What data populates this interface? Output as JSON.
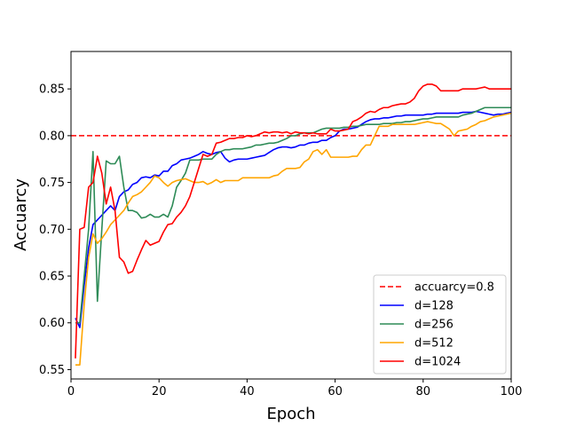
{
  "chart_data": {
    "type": "line",
    "title": "",
    "xlabel": "Epoch",
    "ylabel": "Accuarcy",
    "xlim": [
      0,
      100
    ],
    "ylim": [
      0.54,
      0.89
    ],
    "xticks": [
      0,
      20,
      40,
      60,
      80,
      100
    ],
    "yticks": [
      0.55,
      0.6,
      0.65,
      0.7,
      0.75,
      0.8,
      0.85
    ],
    "grid": false,
    "legend_position": "lower-right",
    "reference_line": {
      "name": "accuarcy=0.8",
      "y": 0.8,
      "color": "#ff0000",
      "style": "dashed"
    },
    "series": [
      {
        "name": "d=128",
        "color": "#0000ff",
        "x": [
          1,
          2,
          3,
          4,
          5,
          6,
          7,
          8,
          9,
          10,
          11,
          12,
          13,
          14,
          15,
          16,
          17,
          18,
          19,
          20,
          21,
          22,
          23,
          24,
          25,
          26,
          27,
          28,
          29,
          30,
          31,
          32,
          33,
          34,
          35,
          36,
          37,
          38,
          39,
          40,
          41,
          42,
          43,
          44,
          45,
          46,
          47,
          48,
          49,
          50,
          51,
          52,
          53,
          54,
          55,
          56,
          57,
          58,
          59,
          60,
          61,
          62,
          63,
          64,
          65,
          66,
          67,
          68,
          69,
          70,
          71,
          72,
          73,
          74,
          75,
          76,
          77,
          78,
          79,
          80,
          81,
          82,
          83,
          84,
          85,
          86,
          87,
          88,
          89,
          90,
          91,
          92,
          93,
          94,
          95,
          96,
          97,
          98,
          99,
          100
        ],
        "y": [
          0.605,
          0.595,
          0.64,
          0.68,
          0.705,
          0.71,
          0.715,
          0.72,
          0.725,
          0.72,
          0.735,
          0.74,
          0.742,
          0.748,
          0.75,
          0.755,
          0.756,
          0.755,
          0.758,
          0.757,
          0.762,
          0.762,
          0.768,
          0.77,
          0.774,
          0.775,
          0.776,
          0.778,
          0.78,
          0.783,
          0.781,
          0.78,
          0.782,
          0.783,
          0.776,
          0.772,
          0.774,
          0.775,
          0.775,
          0.775,
          0.776,
          0.777,
          0.778,
          0.779,
          0.782,
          0.785,
          0.787,
          0.788,
          0.788,
          0.787,
          0.788,
          0.79,
          0.79,
          0.792,
          0.793,
          0.793,
          0.795,
          0.795,
          0.798,
          0.8,
          0.805,
          0.807,
          0.807,
          0.808,
          0.809,
          0.812,
          0.815,
          0.817,
          0.818,
          0.818,
          0.819,
          0.819,
          0.82,
          0.821,
          0.821,
          0.822,
          0.822,
          0.822,
          0.822,
          0.822,
          0.823,
          0.823,
          0.824,
          0.824,
          0.824,
          0.824,
          0.824,
          0.824,
          0.825,
          0.825,
          0.825,
          0.826,
          0.825,
          0.824,
          0.823,
          0.822,
          0.823,
          0.823,
          0.824,
          0.825
        ]
      },
      {
        "name": "d=256",
        "color": "#2e8b57",
        "x": [
          1,
          2,
          3,
          4,
          5,
          6,
          7,
          8,
          9,
          10,
          11,
          12,
          13,
          14,
          15,
          16,
          17,
          18,
          19,
          20,
          21,
          22,
          23,
          24,
          25,
          26,
          27,
          28,
          29,
          30,
          31,
          32,
          33,
          34,
          35,
          36,
          37,
          38,
          39,
          40,
          41,
          42,
          43,
          44,
          45,
          46,
          47,
          48,
          49,
          50,
          51,
          52,
          53,
          54,
          55,
          56,
          57,
          58,
          59,
          60,
          61,
          62,
          63,
          64,
          65,
          66,
          67,
          68,
          69,
          70,
          71,
          72,
          73,
          74,
          75,
          76,
          77,
          78,
          79,
          80,
          81,
          82,
          83,
          84,
          85,
          86,
          87,
          88,
          89,
          90,
          91,
          92,
          93,
          94,
          95,
          96,
          97,
          98,
          99,
          100
        ],
        "y": [
          0.6,
          0.6,
          0.65,
          0.7,
          0.783,
          0.623,
          0.7,
          0.773,
          0.77,
          0.77,
          0.778,
          0.745,
          0.72,
          0.72,
          0.718,
          0.712,
          0.713,
          0.716,
          0.713,
          0.713,
          0.716,
          0.713,
          0.725,
          0.745,
          0.752,
          0.76,
          0.774,
          0.774,
          0.774,
          0.775,
          0.775,
          0.775,
          0.78,
          0.783,
          0.785,
          0.785,
          0.786,
          0.786,
          0.786,
          0.787,
          0.788,
          0.79,
          0.79,
          0.791,
          0.792,
          0.792,
          0.793,
          0.795,
          0.797,
          0.8,
          0.8,
          0.802,
          0.803,
          0.803,
          0.803,
          0.805,
          0.807,
          0.808,
          0.808,
          0.808,
          0.808,
          0.809,
          0.809,
          0.81,
          0.81,
          0.811,
          0.812,
          0.812,
          0.812,
          0.812,
          0.813,
          0.813,
          0.813,
          0.814,
          0.814,
          0.815,
          0.815,
          0.816,
          0.817,
          0.818,
          0.818,
          0.819,
          0.82,
          0.82,
          0.82,
          0.82,
          0.82,
          0.82,
          0.822,
          0.823,
          0.824,
          0.826,
          0.828,
          0.83,
          0.83,
          0.83,
          0.83,
          0.83,
          0.83,
          0.83
        ]
      },
      {
        "name": "d=512",
        "color": "#ffa500",
        "x": [
          1,
          2,
          3,
          4,
          5,
          6,
          7,
          8,
          9,
          10,
          11,
          12,
          13,
          14,
          15,
          16,
          17,
          18,
          19,
          20,
          21,
          22,
          23,
          24,
          25,
          26,
          27,
          28,
          29,
          30,
          31,
          32,
          33,
          34,
          35,
          36,
          37,
          38,
          39,
          40,
          41,
          42,
          43,
          44,
          45,
          46,
          47,
          48,
          49,
          50,
          51,
          52,
          53,
          54,
          55,
          56,
          57,
          58,
          59,
          60,
          61,
          62,
          63,
          64,
          65,
          66,
          67,
          68,
          69,
          70,
          71,
          72,
          73,
          74,
          75,
          76,
          77,
          78,
          79,
          80,
          81,
          82,
          83,
          84,
          85,
          86,
          87,
          88,
          89,
          90,
          91,
          92,
          93,
          94,
          95,
          96,
          97,
          98,
          99,
          100
        ],
        "y": [
          0.555,
          0.555,
          0.62,
          0.67,
          0.695,
          0.685,
          0.69,
          0.697,
          0.705,
          0.71,
          0.715,
          0.72,
          0.728,
          0.735,
          0.737,
          0.74,
          0.745,
          0.75,
          0.757,
          0.755,
          0.75,
          0.746,
          0.75,
          0.752,
          0.753,
          0.754,
          0.752,
          0.75,
          0.75,
          0.751,
          0.748,
          0.75,
          0.753,
          0.75,
          0.752,
          0.752,
          0.752,
          0.752,
          0.755,
          0.755,
          0.755,
          0.755,
          0.755,
          0.755,
          0.755,
          0.757,
          0.758,
          0.762,
          0.765,
          0.765,
          0.765,
          0.766,
          0.772,
          0.775,
          0.783,
          0.785,
          0.78,
          0.785,
          0.777,
          0.777,
          0.777,
          0.777,
          0.777,
          0.778,
          0.778,
          0.785,
          0.79,
          0.79,
          0.8,
          0.81,
          0.81,
          0.81,
          0.812,
          0.812,
          0.812,
          0.812,
          0.812,
          0.812,
          0.813,
          0.814,
          0.815,
          0.814,
          0.813,
          0.813,
          0.81,
          0.807,
          0.8,
          0.805,
          0.806,
          0.807,
          0.81,
          0.812,
          0.815,
          0.816,
          0.818,
          0.82,
          0.821,
          0.822,
          0.823,
          0.824
        ]
      },
      {
        "name": "d=1024",
        "color": "#ff0000",
        "x": [
          1,
          2,
          3,
          4,
          5,
          6,
          7,
          8,
          9,
          10,
          11,
          12,
          13,
          14,
          15,
          16,
          17,
          18,
          19,
          20,
          21,
          22,
          23,
          24,
          25,
          26,
          27,
          28,
          29,
          30,
          31,
          32,
          33,
          34,
          35,
          36,
          37,
          38,
          39,
          40,
          41,
          42,
          43,
          44,
          45,
          46,
          47,
          48,
          49,
          50,
          51,
          52,
          53,
          54,
          55,
          56,
          57,
          58,
          59,
          60,
          61,
          62,
          63,
          64,
          65,
          66,
          67,
          68,
          69,
          70,
          71,
          72,
          73,
          74,
          75,
          76,
          77,
          78,
          79,
          80,
          81,
          82,
          83,
          84,
          85,
          86,
          87,
          88,
          89,
          90,
          91,
          92,
          93,
          94,
          95,
          96,
          97,
          98,
          99,
          100
        ],
        "y": [
          0.562,
          0.7,
          0.702,
          0.745,
          0.75,
          0.778,
          0.76,
          0.727,
          0.745,
          0.72,
          0.67,
          0.665,
          0.653,
          0.655,
          0.667,
          0.678,
          0.688,
          0.683,
          0.685,
          0.687,
          0.697,
          0.705,
          0.706,
          0.713,
          0.718,
          0.725,
          0.735,
          0.75,
          0.765,
          0.78,
          0.778,
          0.78,
          0.792,
          0.793,
          0.795,
          0.797,
          0.797,
          0.798,
          0.798,
          0.8,
          0.799,
          0.8,
          0.802,
          0.804,
          0.803,
          0.804,
          0.804,
          0.803,
          0.804,
          0.802,
          0.804,
          0.803,
          0.803,
          0.802,
          0.803,
          0.802,
          0.802,
          0.802,
          0.807,
          0.805,
          0.805,
          0.806,
          0.807,
          0.815,
          0.817,
          0.82,
          0.824,
          0.826,
          0.825,
          0.828,
          0.83,
          0.83,
          0.832,
          0.833,
          0.834,
          0.834,
          0.836,
          0.84,
          0.848,
          0.853,
          0.855,
          0.855,
          0.853,
          0.848,
          0.848,
          0.848,
          0.848,
          0.848,
          0.85,
          0.85,
          0.85,
          0.85,
          0.851,
          0.852,
          0.85,
          0.85,
          0.85,
          0.85,
          0.85,
          0.85
        ]
      }
    ]
  }
}
